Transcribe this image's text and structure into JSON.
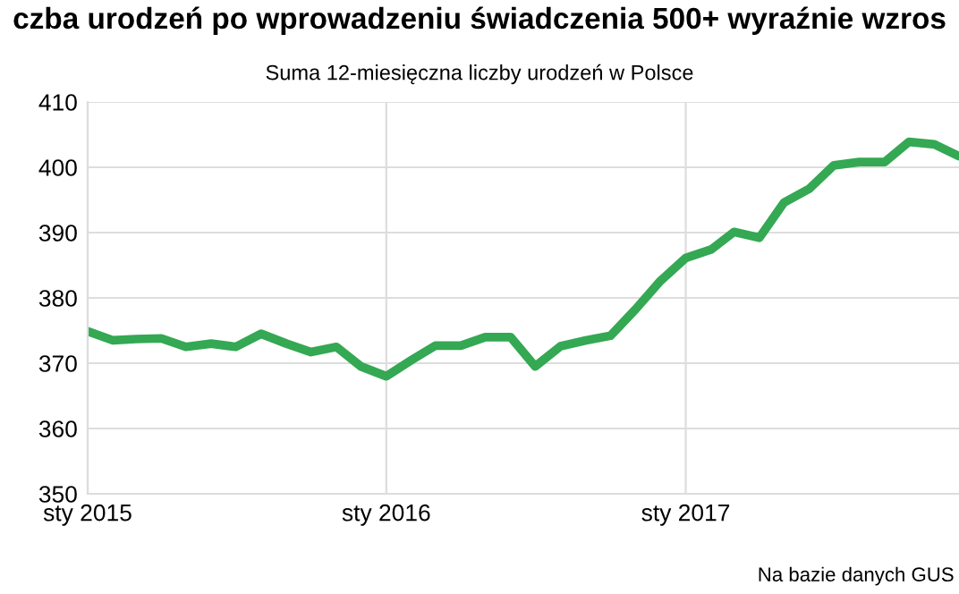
{
  "chart_data": {
    "type": "line",
    "title": "czba urodzeń po wprowadzeniu świadczenia 500+ wyraźnie wzros",
    "subtitle": "Suma 12-miesięczna liczby urodzeń w Polsce",
    "x": [
      "2015-01",
      "2015-02",
      "2015-03",
      "2015-04",
      "2015-05",
      "2015-06",
      "2015-07",
      "2015-08",
      "2015-09",
      "2015-10",
      "2015-11",
      "2015-12",
      "2016-01",
      "2016-02",
      "2016-03",
      "2016-04",
      "2016-05",
      "2016-06",
      "2016-07",
      "2016-08",
      "2016-09",
      "2016-10",
      "2016-11",
      "2016-12",
      "2017-01",
      "2017-02",
      "2017-03",
      "2017-04",
      "2017-05",
      "2017-06",
      "2017-07",
      "2017-08",
      "2017-09",
      "2017-10",
      "2017-11",
      "2017-12"
    ],
    "series": [
      {
        "color": "#34a853",
        "values": [
          374.9,
          373.5,
          373.7,
          373.8,
          372.5,
          373.0,
          372.5,
          374.5,
          373.0,
          371.7,
          372.5,
          369.5,
          368.0,
          370.5,
          372.7,
          372.7,
          374.0,
          374.0,
          369.5,
          372.6,
          373.5,
          374.2,
          378.3,
          382.6,
          386.1,
          387.4,
          390.1,
          389.2,
          394.6,
          396.7,
          400.3,
          400.8,
          400.8,
          403.9,
          403.5,
          401.7
        ]
      }
    ],
    "xlim": [
      "2015-01",
      "2017-12"
    ],
    "xticks": [
      {
        "value": "2015-01",
        "label": "sty 2015"
      },
      {
        "value": "2016-01",
        "label": "sty 2016"
      },
      {
        "value": "2017-01",
        "label": "sty 2017"
      }
    ],
    "ylim": [
      350,
      410
    ],
    "yticks": [
      350,
      360,
      370,
      380,
      390,
      400,
      410
    ],
    "grid": true,
    "marker": "none",
    "line_style": "solid",
    "annotations": [
      "Na bazie danych GUS"
    ]
  }
}
